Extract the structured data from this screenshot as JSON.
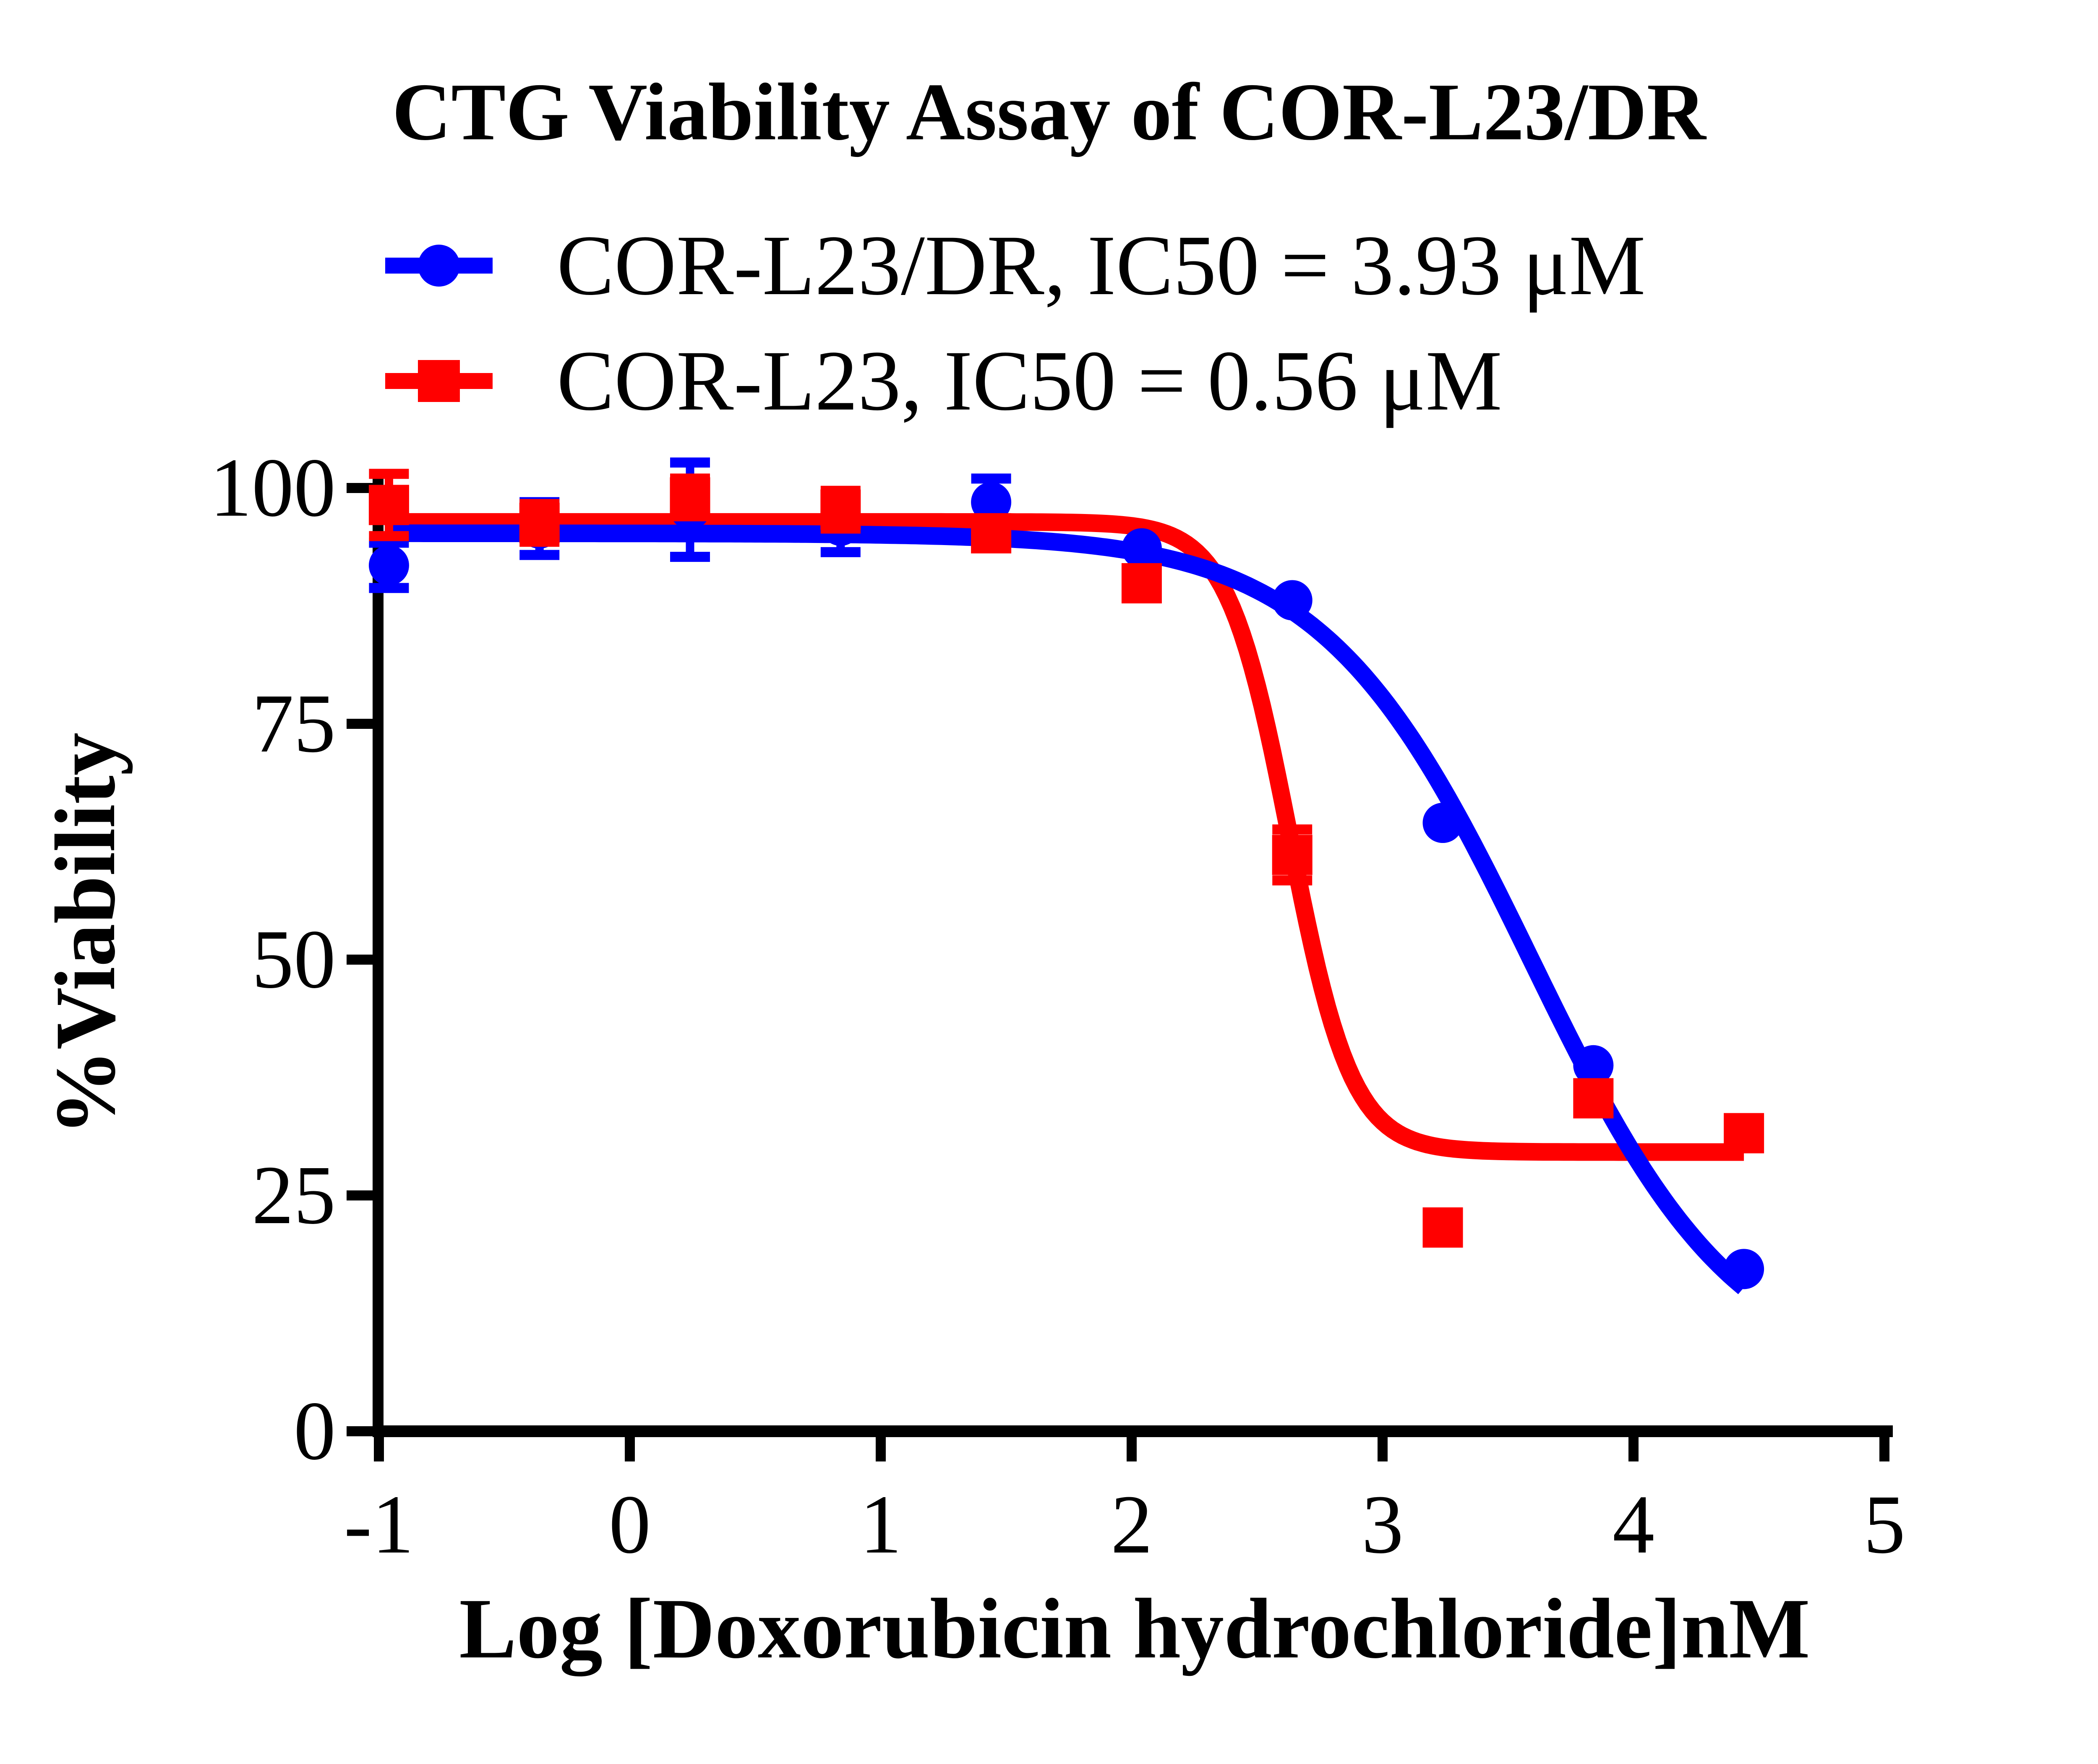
{
  "chart_data": {
    "type": "scatter",
    "title": "CTG Viability Assay of COR-L23/DR",
    "xlabel": "Log [Doxorubicin hydrochloride]nM",
    "ylabel": "%Viability",
    "x_ticks": [
      -1,
      0,
      1,
      2,
      3,
      4,
      5
    ],
    "y_ticks": [
      0,
      25,
      50,
      75,
      100
    ],
    "xlim": [
      -1,
      5.05
    ],
    "ylim": [
      0,
      105
    ],
    "grid": false,
    "legend_position": "top-left",
    "axis_color": "#000000",
    "background_color": "#ffffff",
    "series": [
      {
        "name": "COR-L23/DR, IC50 = 3.93 μM",
        "color": "#0000ff",
        "marker": "circle",
        "x": [
          -0.96,
          -0.36,
          0.24,
          0.84,
          1.44,
          2.04,
          2.64,
          3.24,
          3.84,
          4.44
        ],
        "y": [
          91.8,
          95.7,
          97.7,
          96.0,
          98.5,
          93.6,
          88.1,
          64.5,
          38.8,
          17.2
        ],
        "err": [
          2.4,
          2.8,
          5.0,
          2.8,
          2.5,
          0,
          0,
          0,
          0,
          0
        ],
        "fit": {
          "top": 95.2,
          "bottom": 5.0,
          "log_ic50": 3.59,
          "hill": 1.05
        }
      },
      {
        "name": "COR-L23, IC50 = 0.56 μM",
        "color": "#ff0000",
        "marker": "square",
        "x": [
          -0.96,
          -0.36,
          0.24,
          0.84,
          1.44,
          2.04,
          2.64,
          3.24,
          3.84,
          4.44
        ],
        "y": [
          98.2,
          96.3,
          99.0,
          97.7,
          95.2,
          89.9,
          61.1,
          21.6,
          35.3,
          31.6
        ],
        "err": [
          3.3,
          2.0,
          2.0,
          2.0,
          0,
          0,
          2.7,
          0,
          0,
          0
        ],
        "fit": {
          "top": 96.4,
          "bottom": 29.6,
          "log_ic50": 2.63,
          "hill": 3.5
        }
      }
    ]
  }
}
